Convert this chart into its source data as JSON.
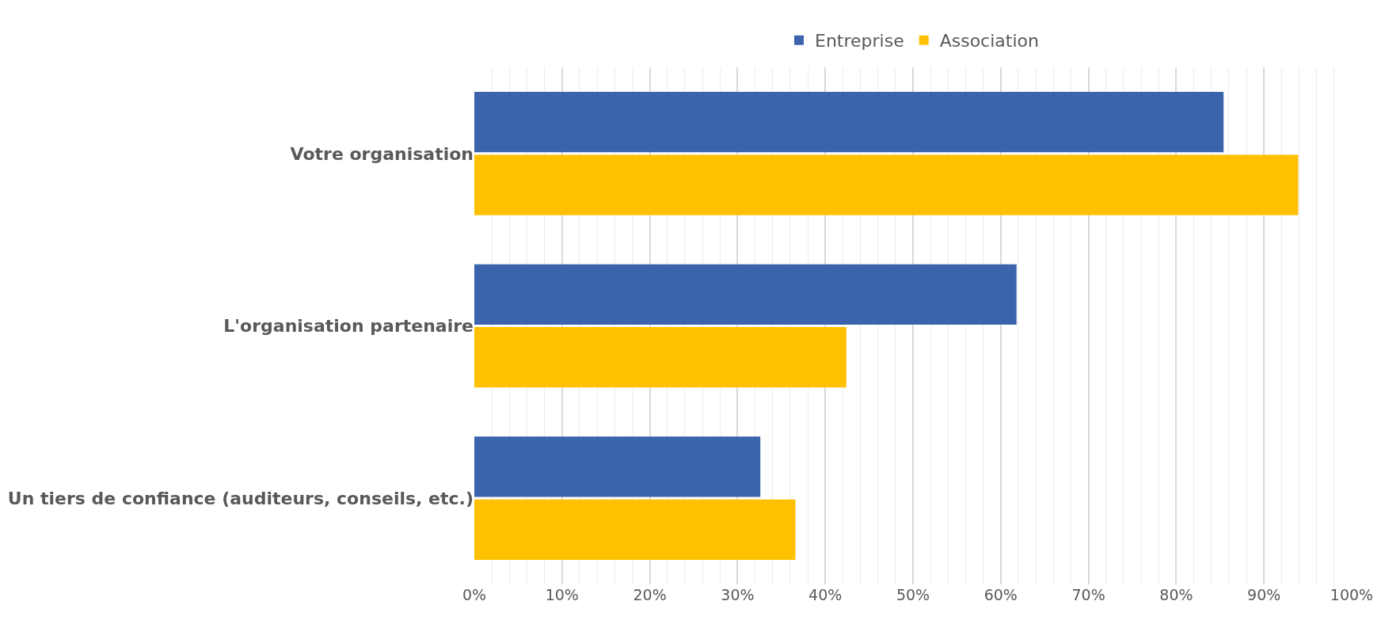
{
  "chart_data": {
    "type": "bar",
    "orientation": "horizontal",
    "categories": [
      "Votre organisation",
      "L'organisation partenaire",
      "Un tiers de confiance (auditeurs, conseils, etc.)"
    ],
    "series": [
      {
        "name": "Entreprise",
        "color": "#3b64ad",
        "values": [
          85.4,
          61.8,
          32.6
        ]
      },
      {
        "name": "Association",
        "color": "#ffc000",
        "values": [
          93.9,
          42.4,
          36.6
        ]
      }
    ],
    "xlim": [
      0,
      100
    ],
    "xticks": [
      {
        "value": 0,
        "label": "0%"
      },
      {
        "value": 10,
        "label": "10%"
      },
      {
        "value": 20,
        "label": "20%"
      },
      {
        "value": 30,
        "label": "30%"
      },
      {
        "value": 40,
        "label": "40%"
      },
      {
        "value": 50,
        "label": "50%"
      },
      {
        "value": 60,
        "label": "60%"
      },
      {
        "value": 70,
        "label": "70%"
      },
      {
        "value": 80,
        "label": "80%"
      },
      {
        "value": 90,
        "label": "90%"
      },
      {
        "value": 100,
        "label": "100%"
      }
    ],
    "grid": "x",
    "legend": "top"
  }
}
